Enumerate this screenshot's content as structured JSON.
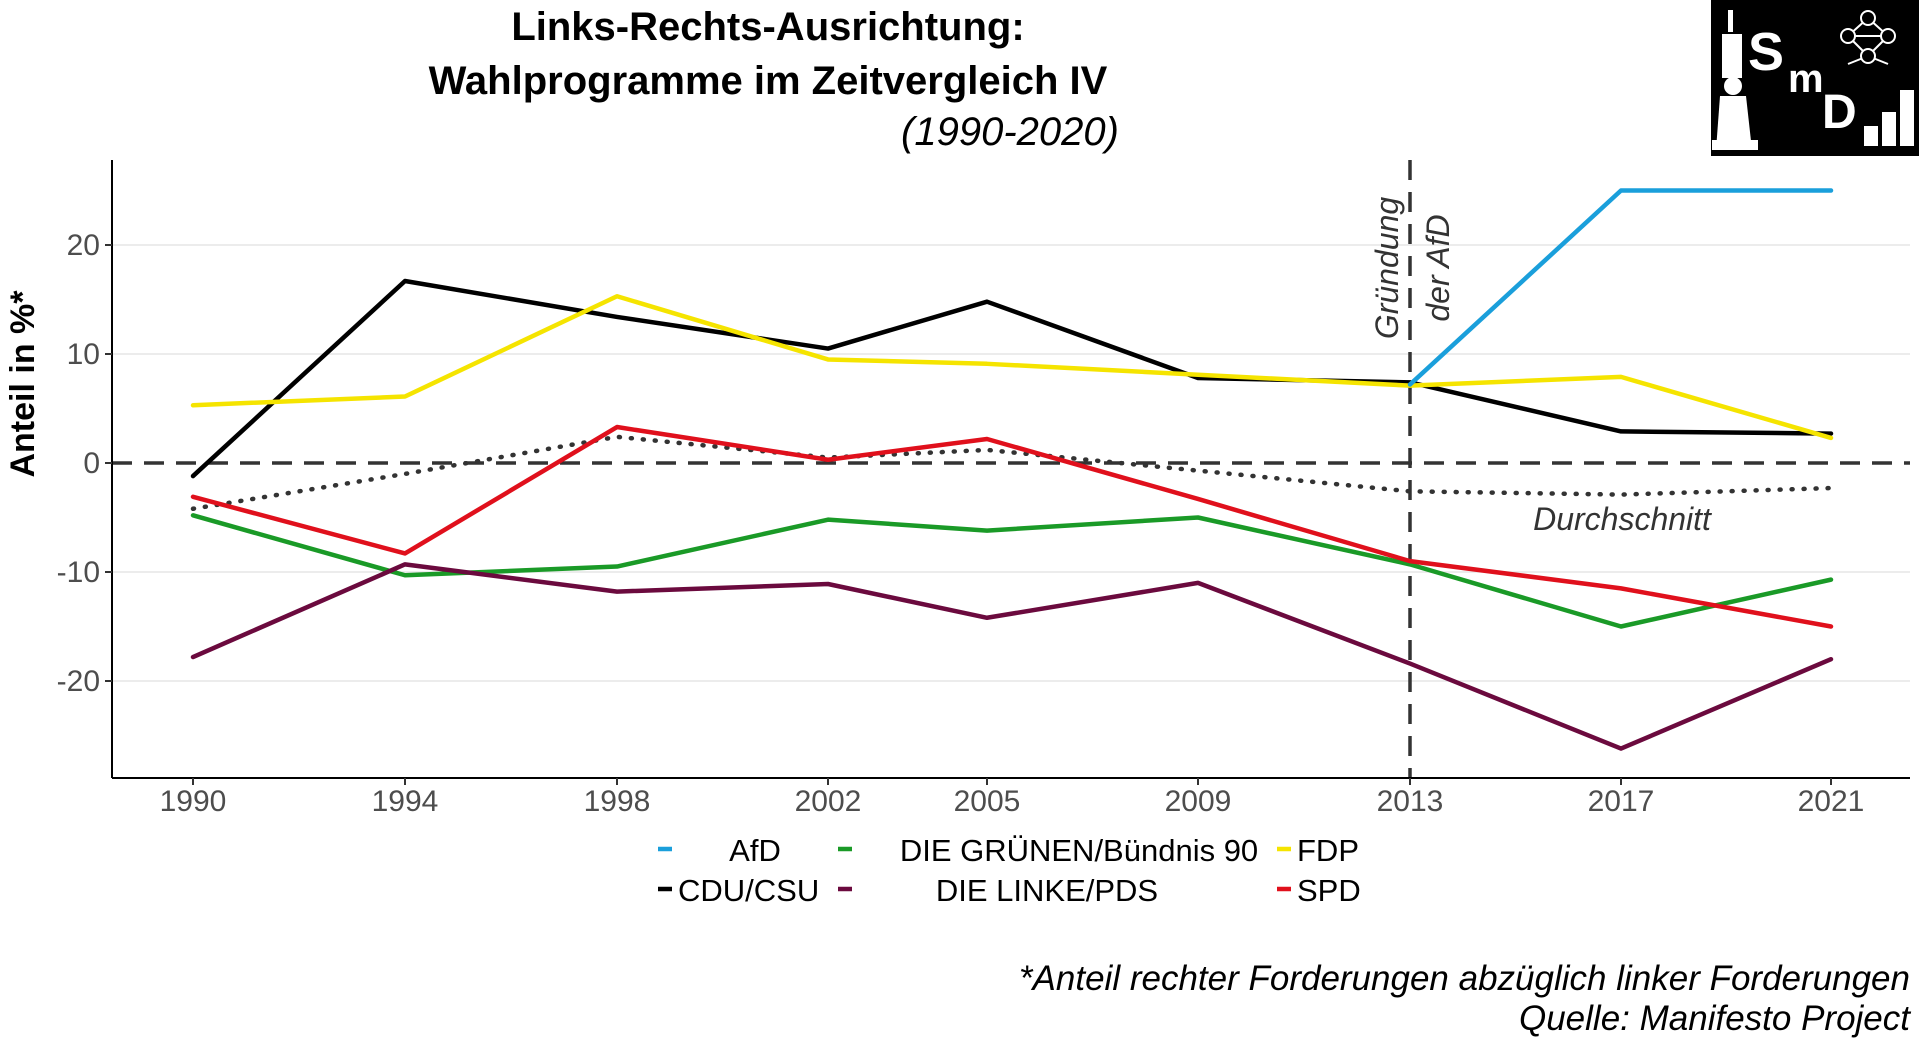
{
  "logo": {
    "text": "SmD"
  },
  "chart_data": {
    "type": "line",
    "title": "Links-Rechts-Ausrichtung:\nWahlprogramme im Zeitvergleich IV",
    "title_lines": [
      "Links-Rechts-Ausrichtung:",
      "Wahlprogramme im Zeitvergleich IV"
    ],
    "subtitle": "(1990-2020)",
    "xlabel": "",
    "ylabel": "Anteil in %*",
    "x": [
      1990,
      1994,
      1998,
      2002,
      2005,
      2009,
      2013,
      2017,
      2021
    ],
    "x_tick_labels": [
      "1990",
      "1994",
      "1998",
      "2002",
      "2005",
      "2009",
      "2013",
      "2017",
      "2021"
    ],
    "y_ticks": [
      -20,
      -10,
      0,
      10,
      20
    ],
    "y_tick_labels": [
      "-20",
      "-10",
      "0",
      "10",
      "20"
    ],
    "ylim": [
      -29,
      27
    ],
    "grid": true,
    "legend_position": "bottom",
    "series": [
      {
        "name": "AfD",
        "color": "#1a9fdb",
        "values": [
          null,
          null,
          null,
          null,
          null,
          null,
          7.2,
          25.0,
          25.0
        ]
      },
      {
        "name": "DIE GRÜNEN/Bündnis 90",
        "color": "#1a9a27",
        "values": [
          -4.8,
          -10.3,
          -9.5,
          -5.2,
          -6.2,
          -5.0,
          -9.3,
          -15.0,
          -10.7
        ]
      },
      {
        "name": "FDP",
        "color": "#f5e400",
        "values": [
          5.3,
          6.1,
          15.3,
          9.5,
          9.1,
          8.1,
          7.1,
          7.9,
          2.3
        ]
      },
      {
        "name": "CDU/CSU",
        "color": "#000000",
        "values": [
          -1.2,
          16.7,
          13.4,
          10.5,
          14.8,
          7.8,
          7.4,
          2.9,
          2.7
        ]
      },
      {
        "name": "DIE LINKE/PDS",
        "color": "#6b0a3e",
        "values": [
          -17.8,
          -9.3,
          -11.8,
          -11.1,
          -14.2,
          -11.0,
          -18.4,
          -26.2,
          -18.0
        ]
      },
      {
        "name": "SPD",
        "color": "#e0101c",
        "values": [
          -3.1,
          -8.3,
          3.3,
          0.3,
          2.2,
          -3.3,
          -9.0,
          -11.5,
          -15.0
        ]
      }
    ],
    "average": {
      "label": "Durchschnitt",
      "color": "#333333",
      "values": [
        -4.2,
        -1.0,
        2.4,
        0.5,
        1.2,
        -0.7,
        -2.6,
        -2.9,
        -2.3
      ]
    },
    "zero_line": {
      "y": 0
    },
    "vline": {
      "x": 2013,
      "label_lines": [
        "Gründung",
        "der AfD"
      ]
    },
    "caption_lines": [
      "*Anteil rechter Forderungen abzüglich linker Forderungen",
      "Quelle: Manifesto Project"
    ]
  }
}
